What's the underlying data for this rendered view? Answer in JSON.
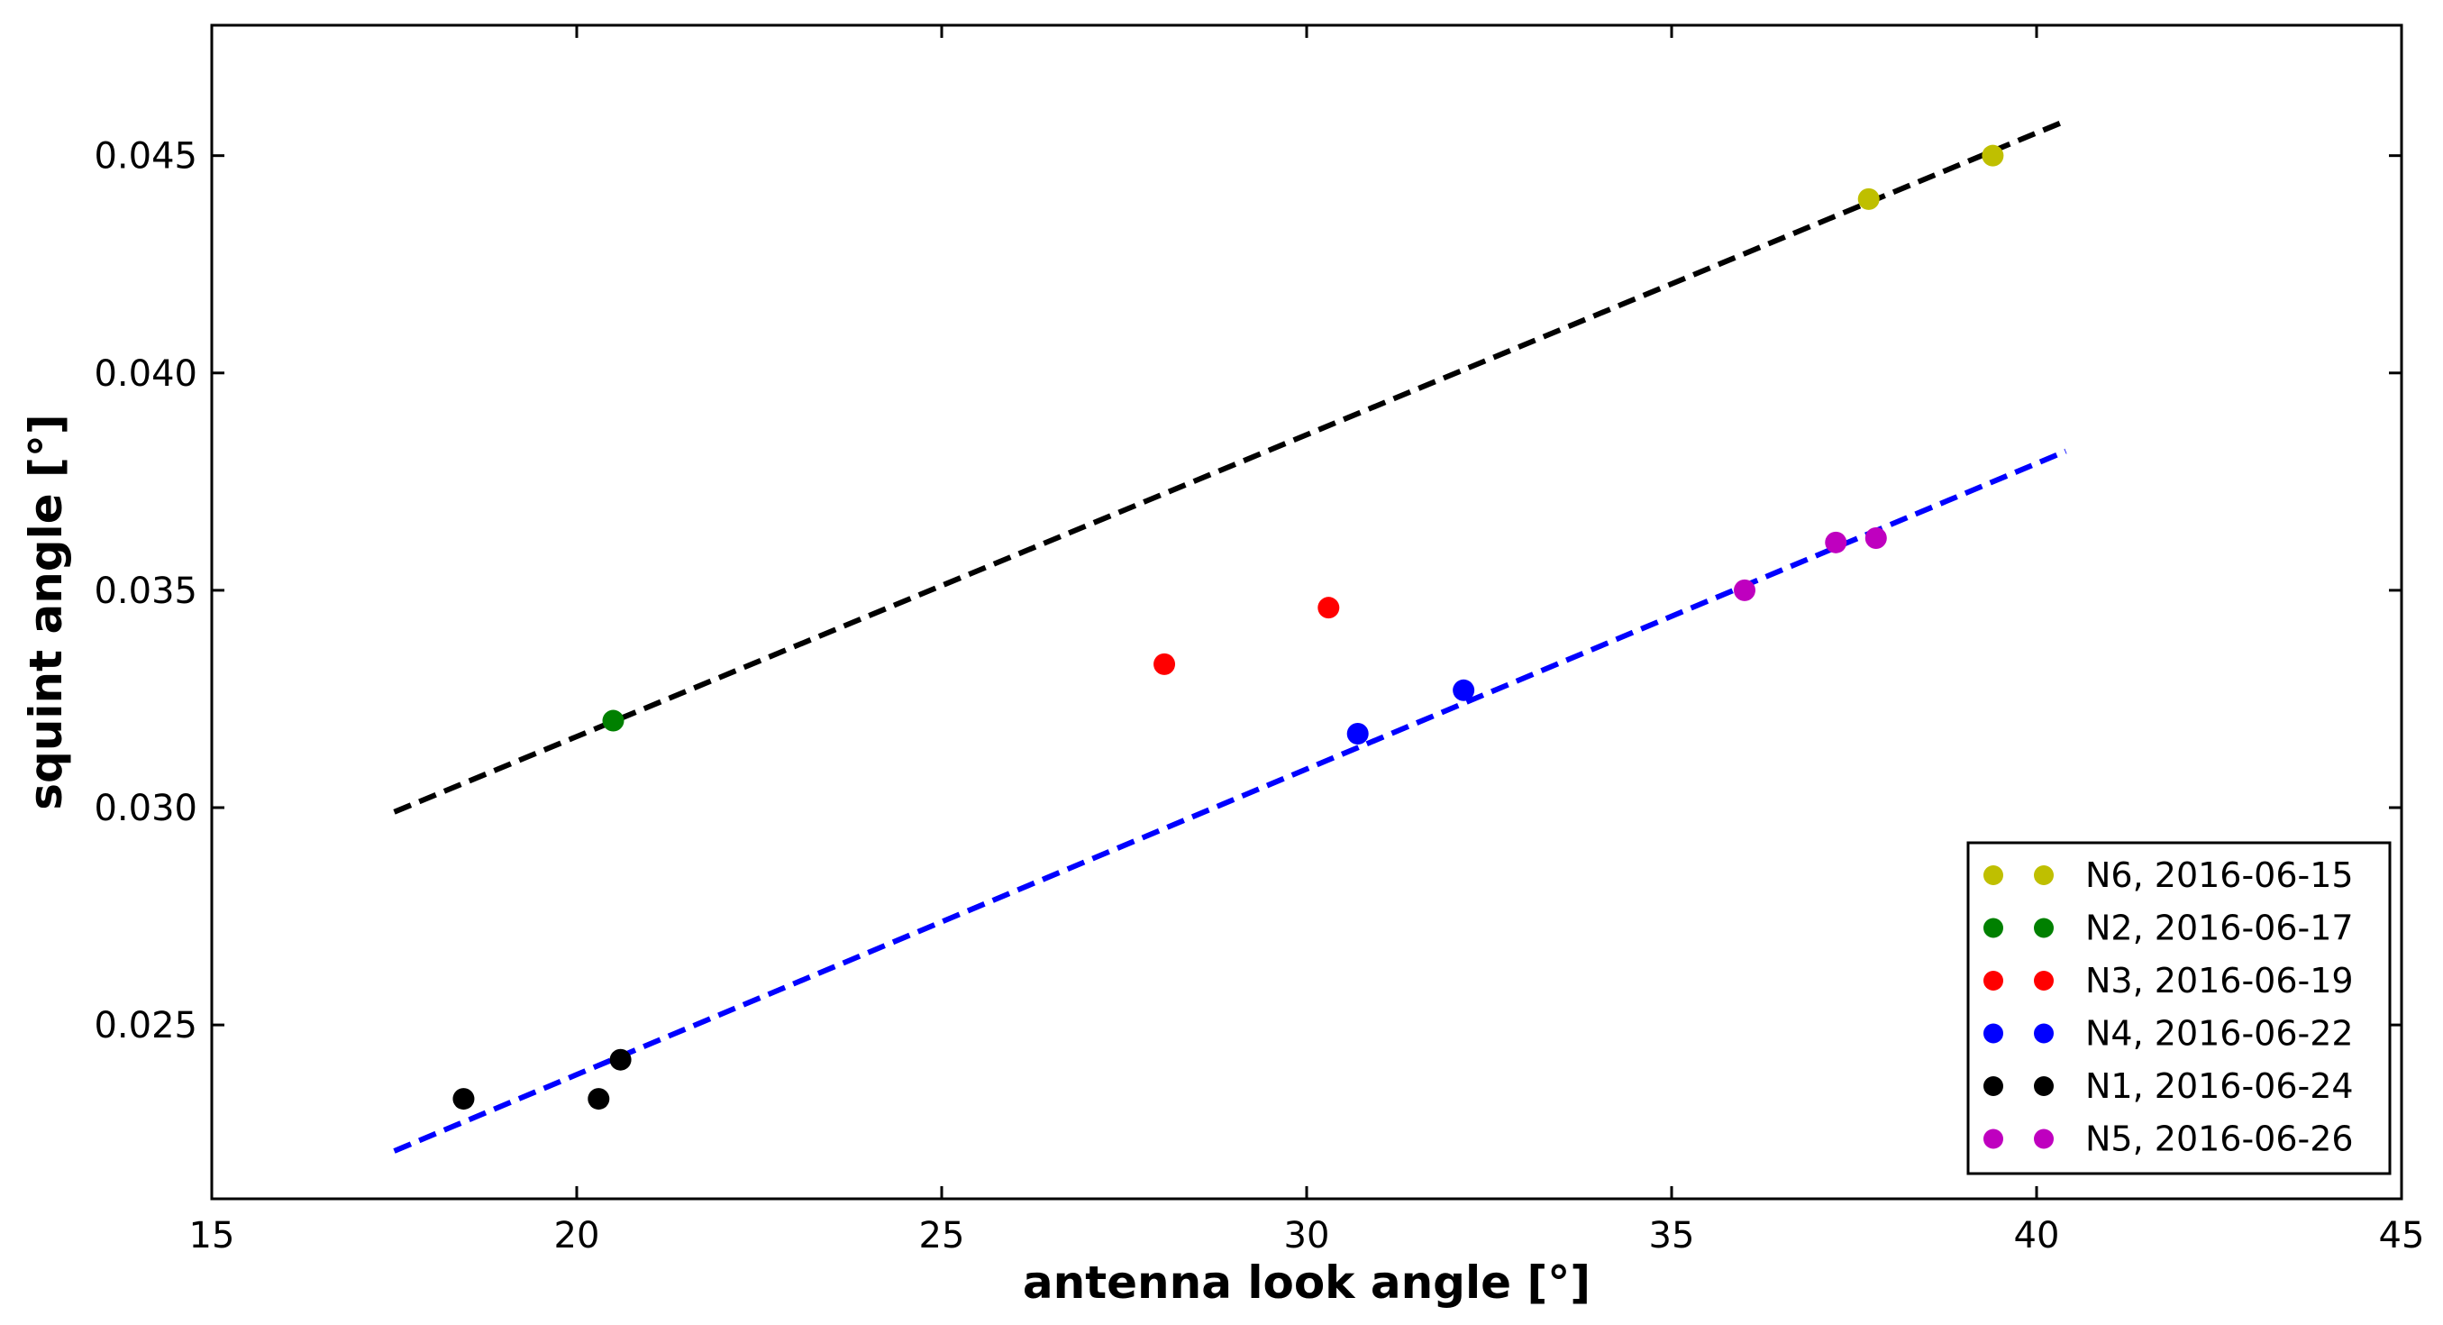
{
  "chart_data": {
    "type": "scatter",
    "title": "",
    "xlabel": "antenna look angle [°]",
    "ylabel": "squint angle [°]",
    "xlim": [
      15,
      45
    ],
    "ylim": [
      0.021,
      0.048
    ],
    "x_ticks": [
      15,
      20,
      25,
      30,
      35,
      40,
      45
    ],
    "x_tick_labels": [
      "15",
      "20",
      "25",
      "30",
      "35",
      "40",
      "45"
    ],
    "y_ticks": [
      0.025,
      0.03,
      0.035,
      0.04,
      0.045
    ],
    "y_tick_labels": [
      "0.025",
      "0.030",
      "0.035",
      "0.040",
      "0.045"
    ],
    "grid": false,
    "legend_position": "bottom-right",
    "series": [
      {
        "name": "N6, 2016-06-15",
        "color": "#bfbf00",
        "points": [
          [
            37.7,
            0.044
          ],
          [
            39.4,
            0.045
          ]
        ]
      },
      {
        "name": "N2, 2016-06-17",
        "color": "#008000",
        "points": [
          [
            20.5,
            0.032
          ]
        ]
      },
      {
        "name": "N3, 2016-06-19",
        "color": "#ff0000",
        "points": [
          [
            28.05,
            0.0333
          ],
          [
            30.3,
            0.0346
          ]
        ]
      },
      {
        "name": "N4, 2016-06-22",
        "color": "#0000ff",
        "points": [
          [
            30.7,
            0.0317
          ],
          [
            32.15,
            0.0327
          ]
        ]
      },
      {
        "name": "N1, 2016-06-24",
        "color": "#000000",
        "points": [
          [
            18.45,
            0.0233
          ],
          [
            20.3,
            0.0233
          ],
          [
            20.6,
            0.0242
          ]
        ]
      },
      {
        "name": "N5, 2016-06-26",
        "color": "#bf00bf",
        "points": [
          [
            36.0,
            0.035
          ],
          [
            37.25,
            0.0361
          ],
          [
            37.8,
            0.0362
          ]
        ]
      }
    ],
    "fit_lines": [
      {
        "name": "upper-fit",
        "color": "#000000",
        "style": "dashed",
        "points": [
          [
            17.5,
            0.0299
          ],
          [
            40.4,
            0.0458
          ]
        ]
      },
      {
        "name": "lower-fit",
        "color": "#0000ff",
        "style": "dashed",
        "points": [
          [
            17.5,
            0.0221
          ],
          [
            40.4,
            0.0382
          ]
        ]
      }
    ]
  }
}
